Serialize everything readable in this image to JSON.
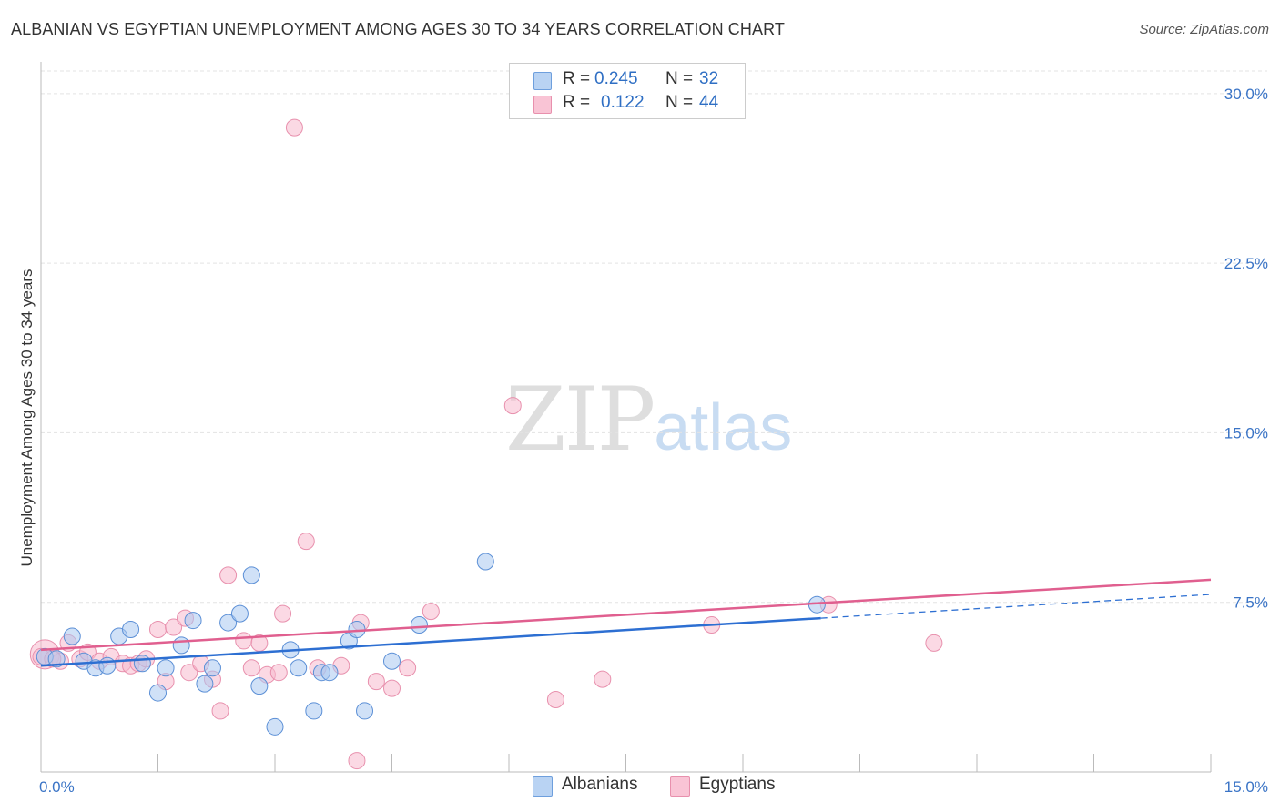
{
  "title": "ALBANIAN VS EGYPTIAN UNEMPLOYMENT AMONG AGES 30 TO 34 YEARS CORRELATION CHART",
  "source": "Source: ZipAtlas.com",
  "watermark": {
    "zip": "ZIP",
    "atlas": "atlas"
  },
  "legend": [
    {
      "r_label": "R =",
      "r_value": "0.245",
      "n_label": "N =",
      "n_value": "32"
    },
    {
      "r_label": "R =",
      "r_value": "0.122",
      "n_label": "N =",
      "n_value": "44"
    }
  ],
  "colors": {
    "albanians_fill": "#a9c8f0",
    "albanians_stroke": "#5b8fd6",
    "albanians_line": "#2d6fd2",
    "egyptians_fill": "#f7b9cd",
    "egyptians_stroke": "#e890ad",
    "egyptians_line": "#e05f8f",
    "axis_text": "#3a74c6",
    "grid": "#e3e3e3"
  },
  "chart_data": {
    "type": "scatter",
    "title": "ALBANIAN VS EGYPTIAN UNEMPLOYMENT AMONG AGES 30 TO 34 YEARS CORRELATION CHART",
    "xlabel": "",
    "ylabel": "Unemployment Among Ages 30 to 34 years",
    "xlim": [
      0,
      15
    ],
    "ylim": [
      0,
      31
    ],
    "x_tick_labels": [
      "0.0%",
      "15.0%"
    ],
    "y_ticks": [
      7.5,
      15.0,
      22.5,
      30.0
    ],
    "y_tick_labels": [
      "7.5%",
      "15.0%",
      "22.5%",
      "30.0%"
    ],
    "series": [
      {
        "name": "Albanians",
        "r": 0.245,
        "n": 32,
        "trend": {
          "x0": 0.0,
          "y0": 4.7,
          "x1": 10.0,
          "y1": 6.8,
          "dashed_to_x": 15.0,
          "dashed_to_y": 7.85
        },
        "points": [
          [
            0.05,
            5.1
          ],
          [
            0.2,
            5.0
          ],
          [
            0.4,
            6.0
          ],
          [
            0.55,
            4.9
          ],
          [
            0.7,
            4.6
          ],
          [
            0.85,
            4.7
          ],
          [
            1.0,
            6.0
          ],
          [
            1.15,
            6.3
          ],
          [
            1.3,
            4.8
          ],
          [
            1.5,
            3.5
          ],
          [
            1.6,
            4.6
          ],
          [
            1.8,
            5.6
          ],
          [
            1.95,
            6.7
          ],
          [
            2.1,
            3.9
          ],
          [
            2.2,
            4.6
          ],
          [
            2.4,
            6.6
          ],
          [
            2.55,
            7.0
          ],
          [
            2.7,
            8.7
          ],
          [
            2.8,
            3.8
          ],
          [
            3.0,
            2.0
          ],
          [
            3.2,
            5.4
          ],
          [
            3.3,
            4.6
          ],
          [
            3.5,
            2.7
          ],
          [
            3.6,
            4.4
          ],
          [
            3.7,
            4.4
          ],
          [
            3.95,
            5.8
          ],
          [
            4.05,
            6.3
          ],
          [
            4.15,
            2.7
          ],
          [
            4.5,
            4.9
          ],
          [
            4.85,
            6.5
          ],
          [
            5.7,
            9.3
          ],
          [
            9.95,
            7.4
          ]
        ]
      },
      {
        "name": "Egyptians",
        "r": 0.122,
        "n": 44,
        "trend": {
          "x0": 0.0,
          "y0": 5.4,
          "x1": 15.0,
          "y1": 8.5
        },
        "points": [
          [
            0.05,
            5.2
          ],
          [
            0.25,
            4.9
          ],
          [
            0.35,
            5.7
          ],
          [
            0.5,
            5.0
          ],
          [
            0.6,
            5.3
          ],
          [
            0.75,
            4.9
          ],
          [
            0.9,
            5.1
          ],
          [
            1.05,
            4.8
          ],
          [
            1.15,
            4.7
          ],
          [
            1.25,
            4.8
          ],
          [
            1.35,
            5.0
          ],
          [
            1.5,
            6.3
          ],
          [
            1.6,
            4.0
          ],
          [
            1.7,
            6.4
          ],
          [
            1.85,
            6.8
          ],
          [
            1.9,
            4.4
          ],
          [
            2.05,
            4.8
          ],
          [
            2.2,
            4.1
          ],
          [
            2.3,
            2.7
          ],
          [
            2.4,
            8.7
          ],
          [
            2.6,
            5.8
          ],
          [
            2.7,
            4.6
          ],
          [
            2.8,
            5.7
          ],
          [
            2.9,
            4.3
          ],
          [
            3.05,
            4.4
          ],
          [
            3.1,
            7.0
          ],
          [
            3.25,
            28.5
          ],
          [
            3.4,
            10.2
          ],
          [
            3.55,
            4.6
          ],
          [
            3.85,
            4.7
          ],
          [
            4.05,
            0.5
          ],
          [
            4.1,
            6.6
          ],
          [
            4.3,
            4.0
          ],
          [
            4.5,
            3.7
          ],
          [
            4.7,
            4.6
          ],
          [
            5.0,
            7.1
          ],
          [
            6.05,
            16.2
          ],
          [
            6.6,
            3.2
          ],
          [
            7.2,
            4.1
          ],
          [
            8.6,
            6.5
          ],
          [
            10.1,
            7.4
          ],
          [
            11.45,
            5.7
          ],
          [
            0.0,
            5.1
          ],
          [
            0.15,
            5.0
          ]
        ]
      }
    ]
  },
  "bottom_legend": [
    {
      "label": "Albanians"
    },
    {
      "label": "Egyptians"
    }
  ]
}
